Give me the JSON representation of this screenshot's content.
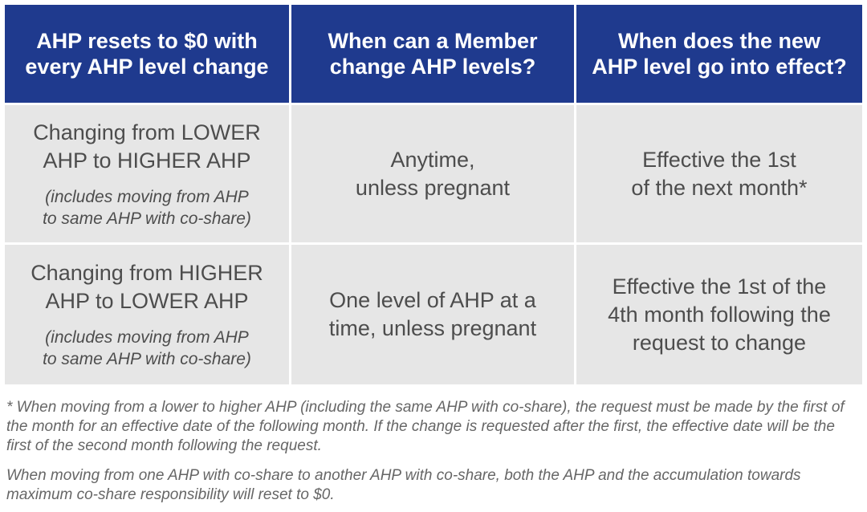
{
  "headers": [
    "AHP resets to $0 with\nevery AHP level change",
    "When can a Member\nchange AHP levels?",
    "When does the new\nAHP level go into effect?"
  ],
  "rows": [
    {
      "change": "Changing from LOWER\nAHP to HIGHER AHP",
      "change_note": "(includes moving from AHP\nto same AHP with co-share)",
      "when": "Anytime,\nunless pregnant",
      "effective": "Effective the 1st\nof the next month*"
    },
    {
      "change": "Changing from HIGHER\nAHP to LOWER AHP",
      "change_note": "(includes moving from AHP\nto same AHP with co-share)",
      "when": "One level of AHP at a\ntime, unless pregnant",
      "effective": "Effective the 1st of the\n4th month following the\nrequest to change"
    }
  ],
  "footnotes": [
    "* When moving from a lower to higher AHP (including the same AHP with co-share), the request must be made by the first of the month for an effective date of the following month. If the change is requested after the first, the effective date will be the first of the second month following the request.",
    "When moving from one AHP with co-share to another AHP with co-share, both the AHP and the accumulation towards maximum co-share responsibility will reset to $0."
  ],
  "colors": {
    "header_bg": "#1f3a8e",
    "header_text": "#ffffff",
    "cell_bg": "#e6e6e6",
    "cell_text": "#4d4d4d",
    "footnote_text": "#666666"
  }
}
